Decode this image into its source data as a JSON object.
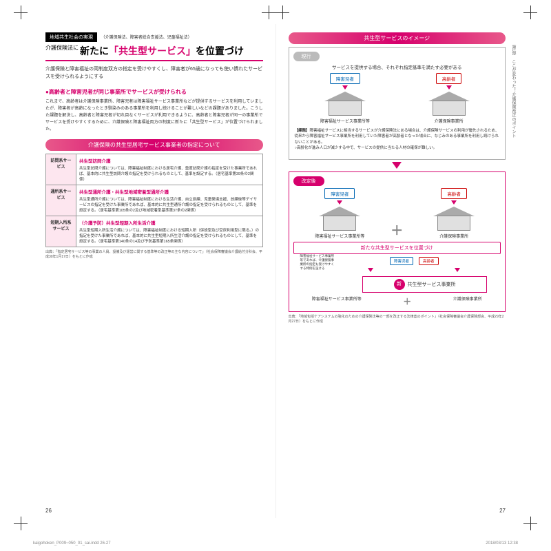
{
  "cropmarks": true,
  "left": {
    "tag": "地域共生社会の実現",
    "laws": "（介護保険法、障害者総合支援法、児童福祉法）",
    "headline_pre": "介護保険法に",
    "headline_main1": "新たに",
    "headline_main2": "「共生型サービス」",
    "headline_main3": "を位置づけ",
    "intro": "介護保険と障害福祉の両制度双方の指定を受けやすくし、障害者が65歳になっても使い慣れたサービスを受けられるようにする",
    "section1_head": "●高齢者と障害児者が同じ事業所でサービスが受けられる",
    "section1_body": "これまで、高齢者は介護保険事業所、障害児者は障害福祉サービス事業所などが提供するサービスを利用していましたが、障害者が高齢になったとき馴染みのある事業所を利用し続けることが難しいなどの課題がありました。こうした課題を解決し、高齢者と障害児者が切れ目なくサービスが利用できるように、高齢者と障害児者が同一の事業所でサービスを受けやすくするために、介護保険と障害福祉両方の制度に新たに「共生型サービス」が位置づけられました。",
    "table_banner": "介護保険の共生型居宅サービス事業者の指定について",
    "rows": [
      {
        "cat": "訪問系サービス",
        "title": "共生型訪問介護",
        "body": "共生型訪問介護については、障害福祉制度における居宅介護、重度訪問介護の指定を受けた事業所であれば、基本的に共生型訪問介護の指定を受けられるものとして、基準を設定する。（居宅基準第39条の2関係）"
      },
      {
        "cat": "通所系サービス",
        "title": "共生型通所介護・共生型地域密着型通所介護",
        "body": "共生型通所介護については、障害福祉制度における生活介護、自立訓練、児童発達支援、放課後等デイサービスの指定を受けた事業所であれば、基本的に共生型通所介護の指定を受けられるものとして、基準を設定する。（居宅基準第105条の2及び地域密着型基準第37条の2関係）"
      },
      {
        "cat": "短期入所系サービス",
        "title": "（介護予防）共生型短期入所生活介護",
        "body": "共生型短期入所生活介護については、障害福祉制度における短期入所（併設型及び空床利用型に限る。）の指定を受けた事業所であれば、基本的に共生型短期入所生活介護の指定を受けられるものとして、基準を設定する。（居宅基準第140条の14及び予防基準第165条関係）"
      }
    ],
    "table_foot": "出典：「指定居宅サービス等の事業の人員、設備及び運営に関する基準等の改正等の主な内容について」（社会保障審議会介護給付分科会、平成30年1月17日）をもとに作成",
    "page_num": "26"
  },
  "right": {
    "banner": "共生型サービスのイメージ",
    "side_text": "第1部　ここが変わった！介護保険改正のポイント",
    "phase1": "現行",
    "phase1_caption": "サービスを提供する場合、それぞれ指定基準を満たす必要がある",
    "child": "障害児者",
    "elder": "高齢者",
    "house1": "障害福祉サービス事業所等",
    "house2": "介護保険事業所",
    "issue_tag": "【課題】",
    "issue_body": "障害福祉サービスに相当するサービスが介護保険法にある場合は、介護保険サービスの利用が優先されるため、従来から障害福祉サービス事業所を利用していた障害者が高齢者となった場合に、なじみのある事業所を利用し続けられないことがある。\n○高齢化が進み人口が減少する中で、サービスの提供に当たる人材の確保が難しい。",
    "phase2": "改定後",
    "new_svc": "新たな共生型サービスを位置づけ",
    "small_note": "障害福祉サービス事業所等であれば、介護保険事業所の指定も受けやすくする特例を設ける",
    "final_new": "新",
    "final_label": "共生型サービス事業所",
    "bottom_l": "障害福祉サービス事業所等",
    "bottom_r": "介護保険事業所",
    "footnote": "出典：「地域包括ケアシステムの強化のための介護保険法等の一部を改正する法律案のポイント」（社会保障審議会介護保険部会、平成29年2月27日）をもとに作成",
    "page_num": "27"
  },
  "print": {
    "file": "kaigohoken_P009~050_01_sai.indd  26-27",
    "date": "2018/03/13  12:38"
  }
}
